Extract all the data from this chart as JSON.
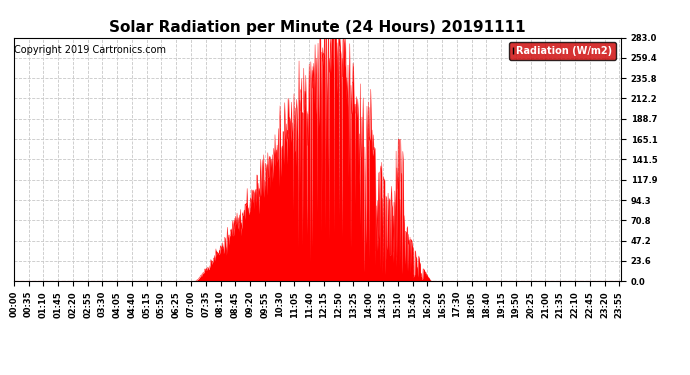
{
  "title": "Solar Radiation per Minute (24 Hours) 20191111",
  "copyright_text": "Copyright 2019 Cartronics.com",
  "legend_label": "Radiation (W/m2)",
  "yticks": [
    0.0,
    23.6,
    47.2,
    70.8,
    94.3,
    117.9,
    141.5,
    165.1,
    188.7,
    212.2,
    235.8,
    259.4,
    283.0
  ],
  "ymax": 283.0,
  "fill_color": "#FF0000",
  "bg_color": "#FFFFFF",
  "grid_color": "#C8C8C8",
  "title_fontsize": 11,
  "copyright_fontsize": 7,
  "tick_fontsize": 6,
  "legend_bg": "#CC0000",
  "legend_text_color": "#FFFFFF",
  "xtick_interval_minutes": 35,
  "total_minutes": 1440,
  "sunrise_minute": 430,
  "sunset_minute": 990,
  "peak_minute": 760,
  "peak_value": 283.0
}
